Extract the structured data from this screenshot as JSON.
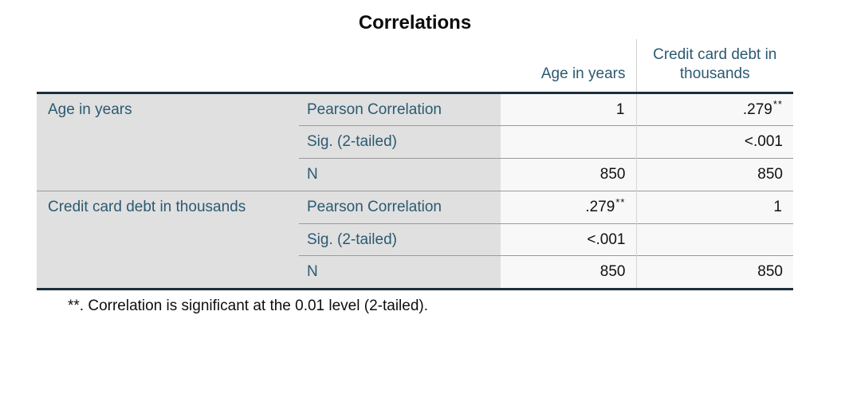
{
  "title": "Correlations",
  "table": {
    "col_headers": [
      "Age in years",
      "Credit card debt in thousands"
    ],
    "groups": [
      {
        "label": "Age in years",
        "rows": [
          {
            "stat": "Pearson Correlation",
            "age": "1",
            "age_sup": "",
            "credit": ".279",
            "credit_sup": "**"
          },
          {
            "stat": "Sig. (2-tailed)",
            "age": "",
            "age_sup": "",
            "credit": "<.001",
            "credit_sup": ""
          },
          {
            "stat": "N",
            "age": "850",
            "age_sup": "",
            "credit": "850",
            "credit_sup": ""
          }
        ]
      },
      {
        "label": "Credit card debt in thousands",
        "rows": [
          {
            "stat": "Pearson Correlation",
            "age": ".279",
            "age_sup": "**",
            "credit": "1",
            "credit_sup": ""
          },
          {
            "stat": "Sig. (2-tailed)",
            "age": "<.001",
            "age_sup": "",
            "credit": "",
            "credit_sup": ""
          },
          {
            "stat": "N",
            "age": "850",
            "age_sup": "",
            "credit": "850",
            "credit_sup": ""
          }
        ]
      }
    ]
  },
  "footnote": "**. Correlation is significant at the 0.01 level (2-tailed).",
  "colors": {
    "header_text": "#2b5a71",
    "label_background": "#e0e0e0",
    "data_background": "#f8f8f9",
    "heavy_border": "#1b2f3c",
    "divider": "#9a9a9a",
    "light_divider": "#d6d6d6",
    "title_text": "#0c0c0c"
  }
}
